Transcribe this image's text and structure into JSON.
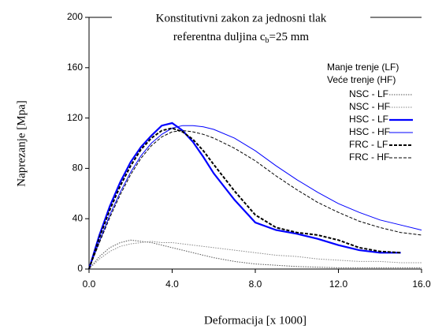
{
  "chart_data": {
    "type": "line",
    "title": "Konstitutivni zakon za jednosni tlak",
    "subtitle": "referentna duljina c",
    "subtitle_subscript": "b",
    "subtitle_end": "=25 mm",
    "xlabel": "Deformacija [x 1000]",
    "ylabel": "Naprezanje [Mpa]",
    "legend_notes": [
      {
        "text": "Manje trenje (LF)",
        "color": "#0000ff"
      },
      {
        "text": "Veće trenje (HF)",
        "color": "#0000ff"
      }
    ],
    "legend": "upper right",
    "xlim": [
      0,
      16
    ],
    "ylim": [
      0,
      200
    ],
    "xticks": [
      {
        "value": 0,
        "label": "0.0"
      },
      {
        "value": 4,
        "label": "4.0"
      },
      {
        "value": 8,
        "label": "8.0"
      },
      {
        "value": 12,
        "label": "12.0"
      },
      {
        "value": 16,
        "label": "16.0"
      }
    ],
    "yticks": [
      0,
      40,
      80,
      120,
      160,
      200
    ],
    "x": [
      0,
      0.5,
      1,
      1.5,
      2,
      2.5,
      3,
      3.5,
      4,
      4.5,
      5,
      5.5,
      6,
      7,
      8,
      9,
      10,
      11,
      12,
      13,
      14,
      15,
      16
    ],
    "series": [
      {
        "name": "NSC - LF",
        "color": "#555555",
        "width": 1,
        "dash": "1.5,1.5",
        "values": [
          0,
          10,
          17,
          21,
          23,
          22,
          21,
          19,
          17,
          15,
          13,
          11,
          9,
          6,
          4,
          3,
          2,
          1.5,
          1,
          1,
          1,
          1,
          1
        ]
      },
      {
        "name": "NSC - HF",
        "color": "#888888",
        "width": 1,
        "dash": "1.5,1.5",
        "values": [
          0,
          8,
          14,
          18,
          20,
          21,
          22,
          21,
          21,
          20,
          19,
          18,
          17,
          15,
          13,
          11,
          10,
          8,
          7,
          6,
          6,
          5,
          5
        ]
      },
      {
        "name": "HSC - LF",
        "color": "#0000ff",
        "width": 2.2,
        "dash": "none",
        "values": [
          0,
          27,
          50,
          69,
          85,
          97,
          106,
          114,
          116,
          110,
          101,
          89,
          76,
          55,
          37,
          31,
          28,
          24,
          19,
          15,
          13,
          13,
          null
        ]
      },
      {
        "name": "HSC - HF",
        "color": "#0000ff",
        "width": 1,
        "dash": "none",
        "values": [
          0,
          22,
          43,
          61,
          77,
          90,
          100,
          107,
          112,
          114,
          114,
          113,
          111,
          104,
          94,
          82,
          71,
          61,
          52,
          45,
          39,
          35,
          31
        ]
      },
      {
        "name": "FRC - LF",
        "color": "#000000",
        "width": 2,
        "dash": "4,2",
        "values": [
          0,
          25,
          47,
          66,
          82,
          95,
          104,
          110,
          112,
          109,
          103,
          94,
          83,
          62,
          43,
          33,
          29,
          27,
          23,
          17,
          14,
          13,
          null
        ]
      },
      {
        "name": "FRC - HF",
        "color": "#000000",
        "width": 1,
        "dash": "4,2",
        "values": [
          0,
          21,
          41,
          59,
          75,
          88,
          98,
          105,
          109,
          110,
          109,
          107,
          104,
          96,
          86,
          74,
          63,
          53,
          45,
          38,
          33,
          29,
          27
        ]
      }
    ]
  }
}
